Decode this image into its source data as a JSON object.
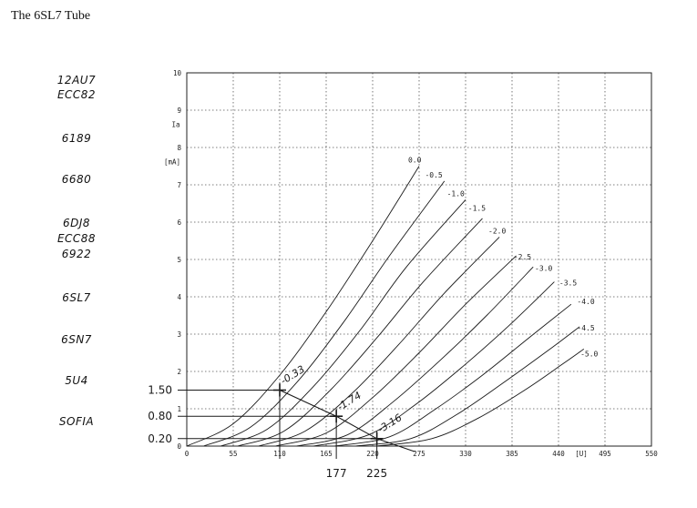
{
  "title": "The 6SL7 Tube",
  "tube_list": [
    "12AU7",
    "ECC82",
    "6189",
    "6680",
    "6DJ8",
    "ECC88",
    "6922",
    "6SL7",
    "6SN7",
    "5U4",
    "SOFIA"
  ],
  "chart_data": {
    "type": "line",
    "title": "",
    "ylabel": "Ia",
    "yunit": "[mA]",
    "xunit": "[U]",
    "xlim": [
      0,
      550
    ],
    "ylim": [
      0,
      10
    ],
    "xticks": [
      0,
      55,
      110,
      165,
      220,
      275,
      330,
      385,
      440,
      495,
      550
    ],
    "yticks": [
      0,
      1,
      2,
      3,
      4,
      5,
      6,
      7,
      8,
      9,
      10
    ],
    "xtick_labels": [
      "0",
      "55",
      "110",
      "165",
      "220",
      "275",
      "330",
      "385",
      "440",
      "495",
      "550"
    ],
    "ytick_labels": [
      "0",
      "1",
      "2",
      "3",
      "4",
      "5",
      "6",
      "7",
      "8",
      "9",
      "10"
    ],
    "grid": true,
    "series": [
      {
        "name": "0.0",
        "x": [
          0,
          55,
          110,
          165,
          220,
          275
        ],
        "y": [
          0,
          0.6,
          1.9,
          3.6,
          5.5,
          7.5
        ]
      },
      {
        "name": "-0.5",
        "x": [
          20,
          75,
          130,
          185,
          240,
          305
        ],
        "y": [
          0,
          0.5,
          1.7,
          3.3,
          5.1,
          7.1
        ]
      },
      {
        "name": "-1.0",
        "x": [
          40,
          95,
          150,
          205,
          260,
          330
        ],
        "y": [
          0,
          0.45,
          1.6,
          3.1,
          4.8,
          6.6
        ]
      },
      {
        "name": "-1.5",
        "x": [
          60,
          115,
          170,
          225,
          280,
          350
        ],
        "y": [
          0,
          0.4,
          1.5,
          2.9,
          4.4,
          6.1
        ]
      },
      {
        "name": "-2.0",
        "x": [
          85,
          140,
          195,
          250,
          305,
          370
        ],
        "y": [
          0,
          0.4,
          1.4,
          2.7,
          4.1,
          5.6
        ]
      },
      {
        "name": "-2.5",
        "x": [
          105,
          165,
          220,
          275,
          330,
          390
        ],
        "y": [
          0,
          0.35,
          1.3,
          2.5,
          3.8,
          5.1
        ]
      },
      {
        "name": "-3.0",
        "x": [
          130,
          190,
          245,
          300,
          355,
          410
        ],
        "y": [
          0,
          0.3,
          1.2,
          2.3,
          3.5,
          4.8
        ]
      },
      {
        "name": "-3.5",
        "x": [
          150,
          215,
          270,
          325,
          380,
          435
        ],
        "y": [
          0,
          0.3,
          1.1,
          2.1,
          3.2,
          4.4
        ]
      },
      {
        "name": "-4.0",
        "x": [
          175,
          240,
          295,
          350,
          405,
          455
        ],
        "y": [
          0,
          0.25,
          1.0,
          1.9,
          2.9,
          3.8
        ]
      },
      {
        "name": "-4.5",
        "x": [
          200,
          265,
          320,
          375,
          430,
          465
        ],
        "y": [
          0,
          0.2,
          0.85,
          1.7,
          2.6,
          3.2
        ]
      },
      {
        "name": "-5.0",
        "x": [
          225,
          290,
          345,
          400,
          445,
          470
        ],
        "y": [
          0,
          0.2,
          0.75,
          1.5,
          2.2,
          2.6
        ]
      }
    ],
    "curve_label_positions": [
      {
        "x": 262,
        "y": 7.6
      },
      {
        "x": 282,
        "y": 7.2
      },
      {
        "x": 308,
        "y": 6.7
      },
      {
        "x": 333,
        "y": 6.3
      },
      {
        "x": 357,
        "y": 5.7
      },
      {
        "x": 387,
        "y": 5.0
      },
      {
        "x": 412,
        "y": 4.7
      },
      {
        "x": 441,
        "y": 4.3
      },
      {
        "x": 462,
        "y": 3.8
      },
      {
        "x": 462,
        "y": 3.1
      },
      {
        "x": 466,
        "y": 2.4
      }
    ],
    "load_line": {
      "x": [
        110,
        177,
        225,
        270
      ],
      "y": [
        1.5,
        0.8,
        0.2,
        -0.15
      ]
    },
    "operating_points": [
      {
        "x": 110,
        "y": 1.5,
        "grid_label": "-0.33",
        "ia_label": "1.50",
        "u_label": ""
      },
      {
        "x": 177,
        "y": 0.8,
        "grid_label": "-1.74",
        "ia_label": "0.80",
        "u_label": "177"
      },
      {
        "x": 225,
        "y": 0.2,
        "grid_label": "-3.16",
        "ia_label": "0.20",
        "u_label": "225"
      }
    ]
  }
}
